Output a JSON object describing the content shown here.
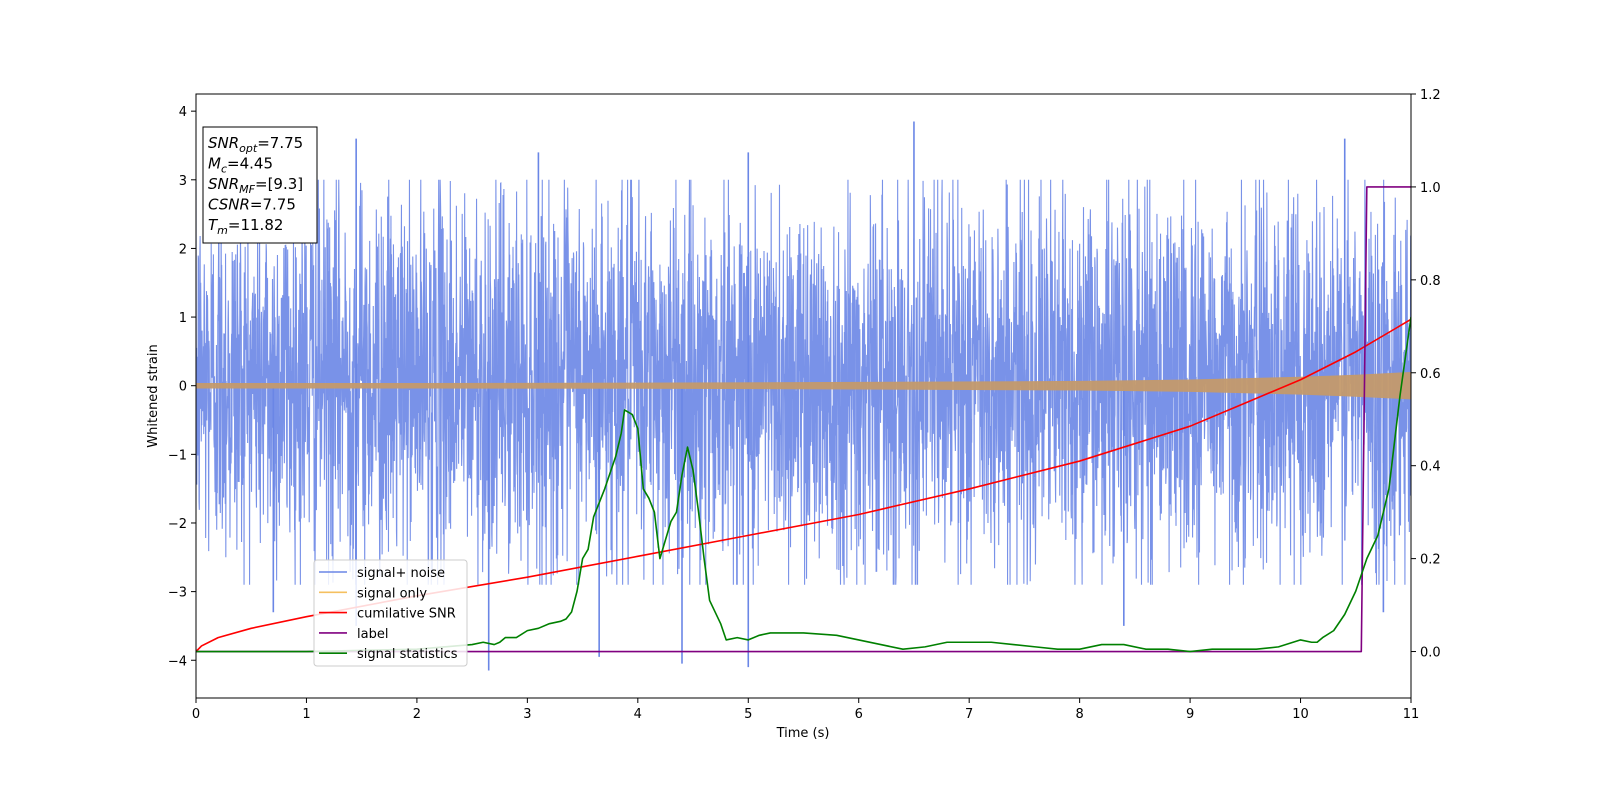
{
  "chart_data": {
    "type": "line",
    "title": "",
    "xlabel": "Time (s)",
    "ylabel": "Whitened strain",
    "y2label": "",
    "xlim": [
      0,
      11
    ],
    "ylim": [
      -4.55,
      4.25
    ],
    "y2lim": [
      -0.1,
      1.2
    ],
    "x_ticks": [
      0,
      1,
      2,
      3,
      4,
      5,
      6,
      7,
      8,
      9,
      10,
      11
    ],
    "y_ticks": [
      -4,
      -3,
      -2,
      -1,
      0,
      1,
      2,
      3,
      4
    ],
    "y2_ticks": [
      0.0,
      0.2,
      0.4,
      0.6,
      0.8,
      1.0,
      1.2
    ],
    "y_tick_labels": [
      "−4",
      "−3",
      "−2",
      "−1",
      "0",
      "1",
      "2",
      "3",
      "4"
    ],
    "y2_tick_labels": [
      "0.0",
      "0.2",
      "0.4",
      "0.6",
      "0.8",
      "1.0",
      "1.2"
    ],
    "grid": false,
    "legend_position": "lower-left",
    "legend": [
      {
        "label": "signal+ noise",
        "color": "#6a86e6"
      },
      {
        "label": "signal only",
        "color": "#f5c060"
      },
      {
        "label": "cumilative SNR",
        "color": "#ff0000"
      },
      {
        "label": "label",
        "color": "#800080"
      },
      {
        "label": "signal statistics",
        "color": "#008000"
      }
    ],
    "annotation": {
      "lines": [
        {
          "sym": "SNR",
          "sub": "opt",
          "rest": "=7.75"
        },
        {
          "sym": "M",
          "sub": "c",
          "rest": "=4.45"
        },
        {
          "sym": "SNR",
          "sub": "MF",
          "rest": "=[9.3]"
        },
        {
          "sym": "CSNR",
          "sub": "",
          "rest": "=7.75"
        },
        {
          "sym": "T",
          "sub": "m",
          "rest": "=11.82"
        }
      ]
    },
    "series": [
      {
        "name": "signal+ noise",
        "axis": "left",
        "color": "#6a86e6",
        "kind": "noise_band",
        "x_range": [
          0,
          11
        ],
        "typical_range": [
          -2.1,
          2.3
        ],
        "peaks": [
          {
            "x": 1.45,
            "y": 3.6
          },
          {
            "x": 3.1,
            "y": 3.4
          },
          {
            "x": 5.0,
            "y": 3.4
          },
          {
            "x": 6.5,
            "y": 3.85
          },
          {
            "x": 10.4,
            "y": 3.6
          },
          {
            "x": 2.65,
            "y": -4.15
          },
          {
            "x": 3.65,
            "y": -3.95
          },
          {
            "x": 4.4,
            "y": -4.05
          },
          {
            "x": 5.0,
            "y": -4.1
          },
          {
            "x": 0.7,
            "y": -3.3
          },
          {
            "x": 1.45,
            "y": -3.5
          },
          {
            "x": 8.4,
            "y": -3.5
          },
          {
            "x": 10.75,
            "y": -3.3
          }
        ]
      },
      {
        "name": "signal only",
        "axis": "left",
        "color": "#c49a6c",
        "kind": "chirp_envelope",
        "x": [
          0,
          2,
          4,
          6,
          8,
          9,
          10,
          10.5,
          11
        ],
        "amplitude": [
          0.04,
          0.04,
          0.045,
          0.055,
          0.07,
          0.09,
          0.13,
          0.16,
          0.2
        ]
      },
      {
        "name": "cumilative SNR",
        "axis": "right",
        "color": "#ff0000",
        "x": [
          0.0,
          0.05,
          0.2,
          0.5,
          1.0,
          2.0,
          3.0,
          4.0,
          5.0,
          6.0,
          7.0,
          8.0,
          9.0,
          9.5,
          10.0,
          10.5,
          11.0
        ],
        "y": [
          0.0,
          0.012,
          0.03,
          0.05,
          0.075,
          0.12,
          0.16,
          0.205,
          0.25,
          0.295,
          0.35,
          0.41,
          0.485,
          0.535,
          0.585,
          0.645,
          0.715
        ]
      },
      {
        "name": "label",
        "axis": "right",
        "color": "#800080",
        "x": [
          0.0,
          10.55,
          10.6,
          11.0
        ],
        "y": [
          0.0,
          0.0,
          1.0,
          1.0
        ]
      },
      {
        "name": "signal statistics",
        "axis": "right",
        "color": "#008000",
        "x": [
          0.0,
          0.5,
          1.0,
          2.0,
          2.5,
          2.6,
          2.7,
          2.75,
          2.8,
          2.9,
          3.0,
          3.1,
          3.2,
          3.3,
          3.35,
          3.4,
          3.45,
          3.5,
          3.55,
          3.6,
          3.7,
          3.8,
          3.85,
          3.88,
          3.95,
          4.0,
          4.05,
          4.1,
          4.15,
          4.2,
          4.25,
          4.3,
          4.35,
          4.4,
          4.45,
          4.5,
          4.55,
          4.6,
          4.65,
          4.75,
          4.8,
          4.9,
          5.0,
          5.1,
          5.2,
          5.5,
          5.8,
          6.0,
          6.2,
          6.4,
          6.6,
          6.8,
          7.0,
          7.2,
          7.4,
          7.6,
          7.8,
          8.0,
          8.2,
          8.4,
          8.6,
          8.8,
          9.0,
          9.2,
          9.4,
          9.6,
          9.8,
          10.0,
          10.1,
          10.15,
          10.2,
          10.3,
          10.4,
          10.5,
          10.6,
          10.7,
          10.8,
          10.9,
          11.0
        ],
        "y": [
          0.0,
          0.0,
          0.0,
          0.005,
          0.015,
          0.02,
          0.015,
          0.02,
          0.03,
          0.03,
          0.045,
          0.05,
          0.06,
          0.065,
          0.07,
          0.085,
          0.13,
          0.2,
          0.22,
          0.29,
          0.35,
          0.42,
          0.47,
          0.52,
          0.51,
          0.48,
          0.35,
          0.33,
          0.3,
          0.2,
          0.24,
          0.28,
          0.3,
          0.38,
          0.44,
          0.39,
          0.3,
          0.2,
          0.11,
          0.06,
          0.025,
          0.03,
          0.025,
          0.035,
          0.04,
          0.04,
          0.035,
          0.025,
          0.015,
          0.005,
          0.01,
          0.02,
          0.02,
          0.02,
          0.015,
          0.01,
          0.005,
          0.005,
          0.015,
          0.015,
          0.005,
          0.005,
          0.0,
          0.005,
          0.005,
          0.005,
          0.01,
          0.025,
          0.02,
          0.02,
          0.03,
          0.045,
          0.08,
          0.13,
          0.2,
          0.25,
          0.35,
          0.55,
          0.72
        ]
      }
    ]
  }
}
